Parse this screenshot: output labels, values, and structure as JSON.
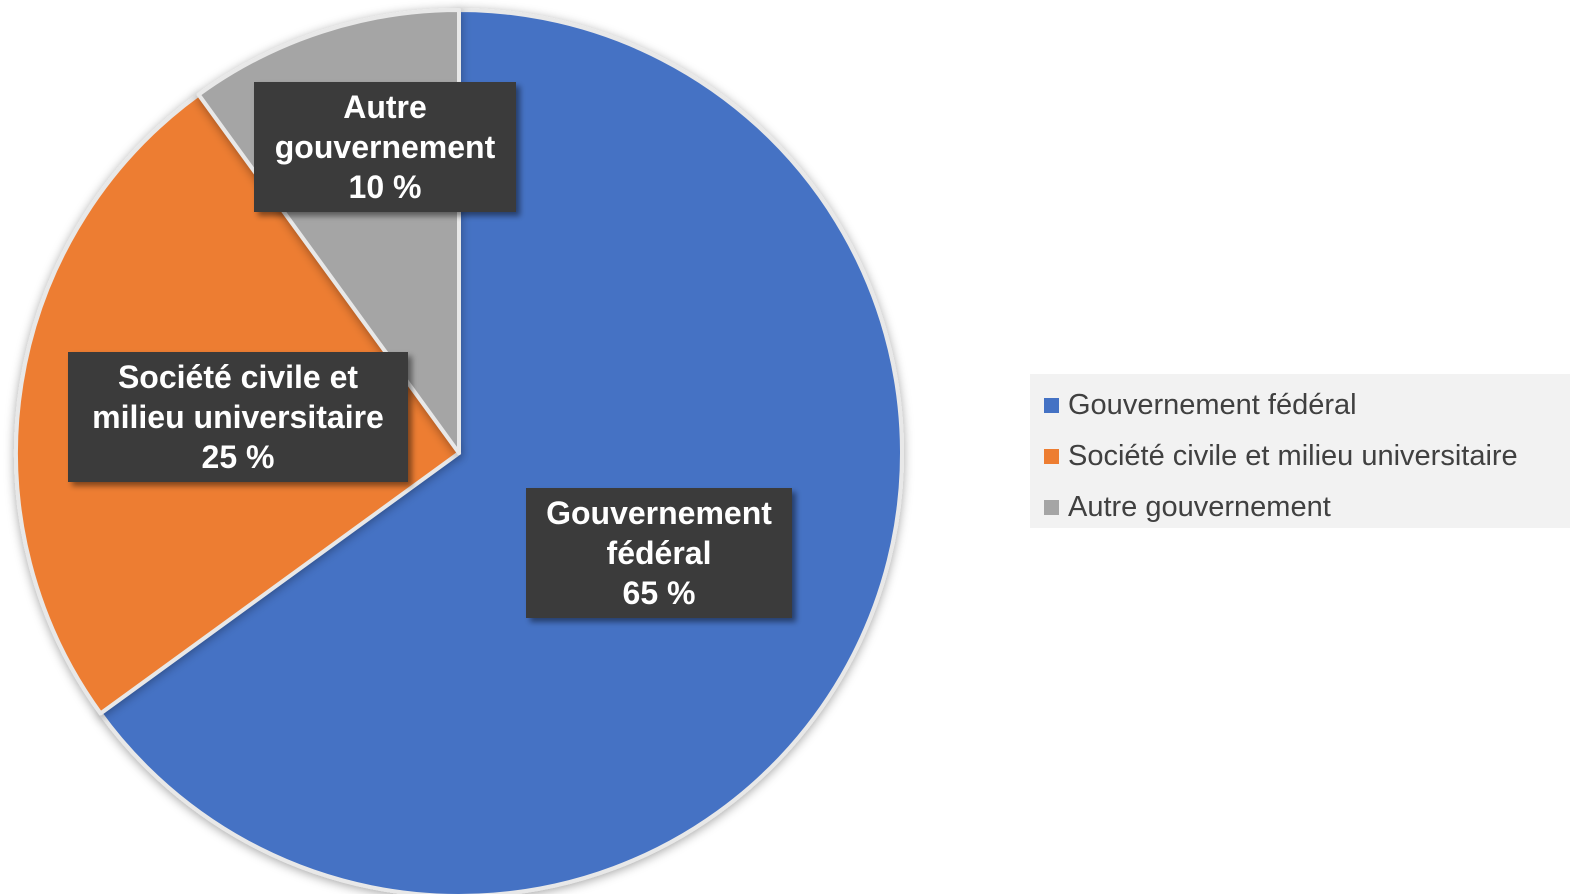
{
  "chart_data": {
    "type": "pie",
    "title": "",
    "legend_position": "right",
    "start_angle": "12 o'clock, clockwise",
    "slices": [
      {
        "name": "Gouvernement fédéral",
        "value": 65,
        "value_label": "65 %",
        "color": "#4472C4",
        "label_lines": [
          "Gouvernement",
          "fédéral",
          "65 %"
        ]
      },
      {
        "name": "Société civile et milieu universitaire",
        "value": 25,
        "value_label": "25 %",
        "color": "#ED7D31",
        "label_lines": [
          "Société civile et",
          "milieu universitaire",
          "25 %"
        ]
      },
      {
        "name": "Autre gouvernement",
        "value": 10,
        "value_label": "10 %",
        "color": "#A5A5A5",
        "label_lines": [
          "Autre",
          "gouvernement",
          "10 %"
        ]
      }
    ]
  }
}
